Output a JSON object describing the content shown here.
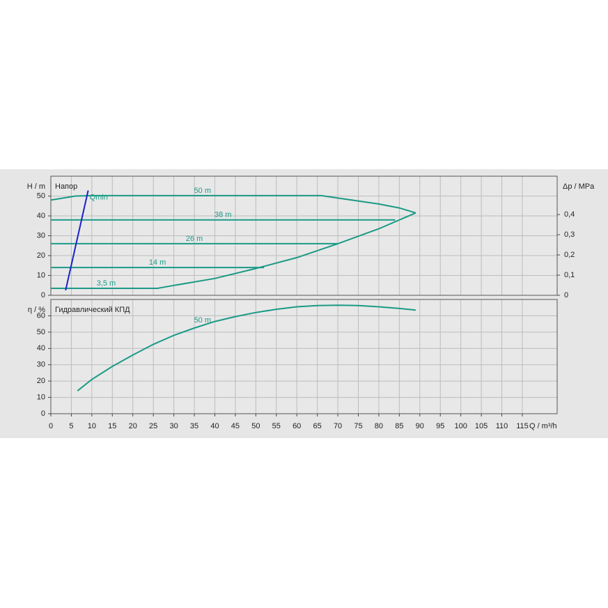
{
  "chart_data": [
    {
      "type": "line",
      "title": "Напор",
      "y_label": "H / m",
      "y2_label": "Δp / MPa",
      "xlim": [
        0,
        123.5
      ],
      "ylim": [
        0,
        60
      ],
      "yticks": [
        0,
        10,
        20,
        30,
        40,
        50
      ],
      "y2lim": [
        0,
        0.59
      ],
      "y2ticks": [
        0,
        {
          "value": 0.1,
          "label": "0,1"
        },
        {
          "value": 0.2,
          "label": "0,2"
        },
        {
          "value": 0.3,
          "label": "0,3"
        },
        {
          "value": 0.4,
          "label": "0,4"
        }
      ],
      "grid": true,
      "series": [
        {
          "name": "50 m",
          "color": "#1a9a86",
          "x": [
            0,
            3,
            6,
            10,
            66,
            70,
            75,
            80,
            85,
            89
          ],
          "values": [
            48,
            49,
            50,
            50.2,
            50.2,
            49,
            47.5,
            46,
            44,
            41.5
          ]
        },
        {
          "name": "38 m",
          "color": "#1a9a86",
          "x": [
            0,
            84
          ],
          "values": [
            38,
            38
          ]
        },
        {
          "name": "26 m",
          "color": "#1a9a86",
          "x": [
            0,
            70
          ],
          "values": [
            26,
            26
          ]
        },
        {
          "name": "14 m",
          "color": "#1a9a86",
          "x": [
            0,
            52
          ],
          "values": [
            14,
            14
          ]
        },
        {
          "name": "3,5 m",
          "color": "#1a9a86",
          "x": [
            0,
            26,
            30,
            40,
            50,
            60,
            70,
            80,
            89
          ],
          "values": [
            3.5,
            3.5,
            5,
            8.5,
            13.5,
            19,
            26,
            33.5,
            41.5
          ]
        },
        {
          "name": "Qmin",
          "color": "#1a22c8",
          "x": [
            3.6,
            9.1
          ],
          "values": [
            2.5,
            52.8
          ]
        }
      ]
    },
    {
      "type": "line",
      "title": "Гидравлический КПД",
      "y_label": "η / %",
      "x_label": "Q / m³/h",
      "xlim": [
        0,
        123.5
      ],
      "ylim": [
        0,
        70
      ],
      "yticks": [
        0,
        10,
        20,
        30,
        40,
        50,
        60
      ],
      "xticks": [
        0,
        5,
        10,
        15,
        20,
        25,
        30,
        35,
        40,
        45,
        50,
        55,
        60,
        65,
        70,
        75,
        80,
        85,
        90,
        95,
        100,
        105,
        110,
        115
      ],
      "grid": true,
      "series": [
        {
          "name": "50 m",
          "color": "#1a9a86",
          "x": [
            6.5,
            10,
            15,
            20,
            25,
            30,
            35,
            40,
            45,
            50,
            55,
            60,
            65,
            70,
            75,
            80,
            85,
            89
          ],
          "values": [
            14,
            21,
            29,
            36,
            42.5,
            48,
            52.5,
            56.5,
            59.5,
            62,
            64,
            65.5,
            66.3,
            66.5,
            66.3,
            65.5,
            64.5,
            63.5
          ]
        }
      ]
    }
  ]
}
